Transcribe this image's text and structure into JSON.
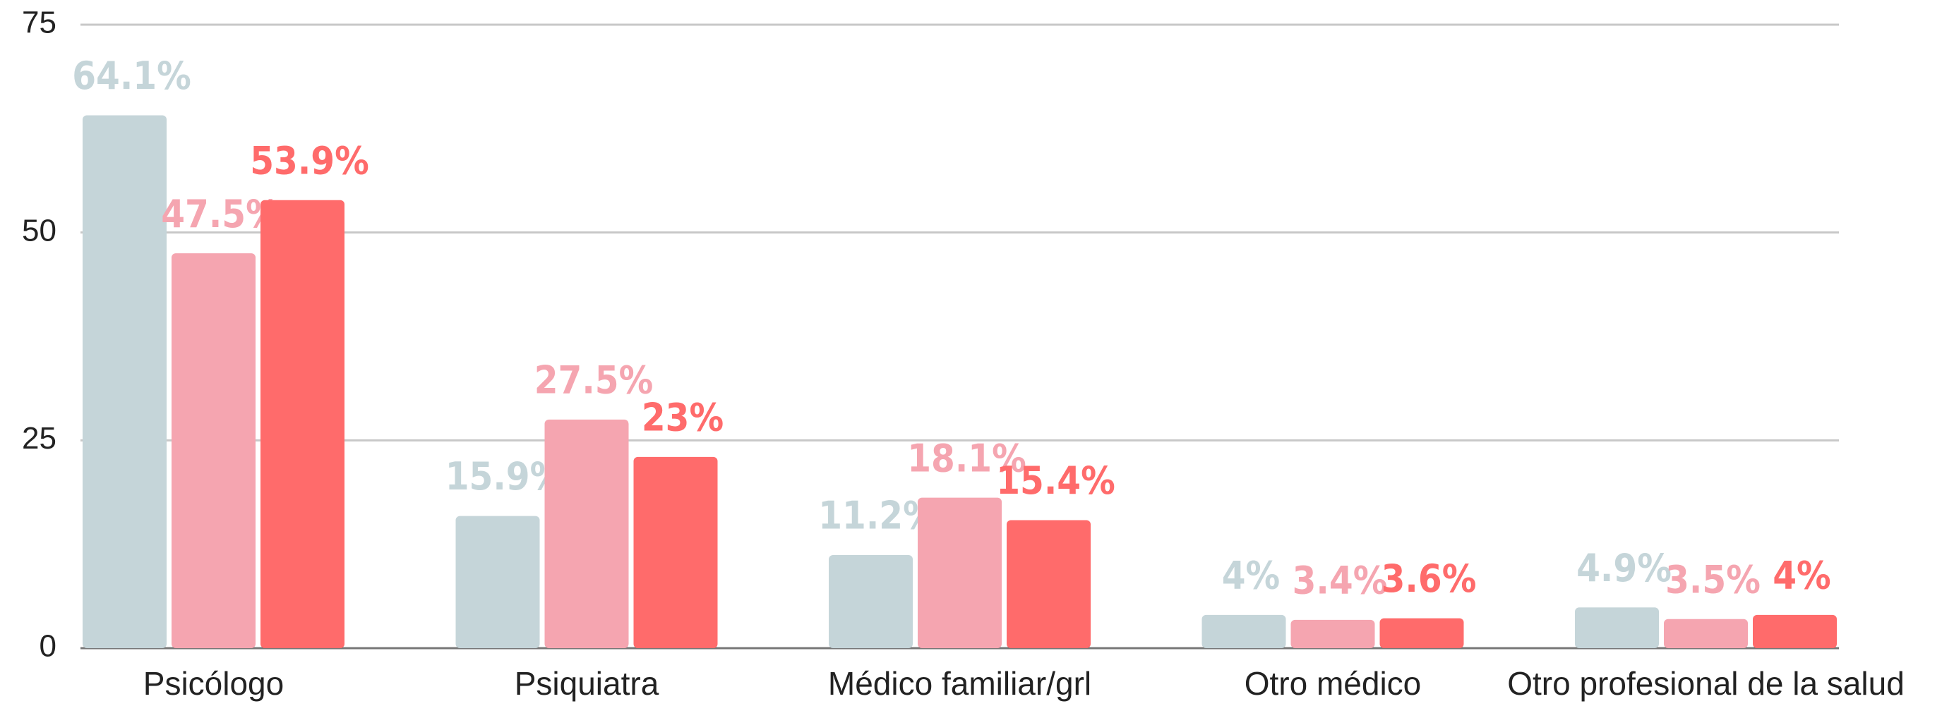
{
  "chart_data": {
    "type": "bar",
    "categories": [
      "Psicólogo",
      "Psiquiatra",
      "Médico familiar/grl",
      "Otro médico",
      "Otro profesional de la salud"
    ],
    "series": [
      {
        "color": "#c5d5d9",
        "values": [
          64.1,
          15.9,
          11.2,
          4,
          4.9
        ],
        "value_labels": [
          "64.1%",
          "15.9%",
          "11.2%",
          "4%",
          "4.9%"
        ]
      },
      {
        "color": "#f5a5b0",
        "values": [
          47.5,
          27.5,
          18.1,
          3.4,
          3.5
        ],
        "value_labels": [
          "47.5%",
          "27.5%",
          "18.1%",
          "3.4%",
          "3.5%"
        ]
      },
      {
        "color": "#ff6b6b",
        "values": [
          53.9,
          23,
          15.4,
          3.6,
          4
        ],
        "value_labels": [
          "53.9%",
          "23%",
          "15.4%",
          "3.6%",
          "4%"
        ]
      }
    ],
    "ylim": [
      0,
      75
    ],
    "yticks": [
      0,
      25,
      50,
      75
    ],
    "grid": true
  }
}
